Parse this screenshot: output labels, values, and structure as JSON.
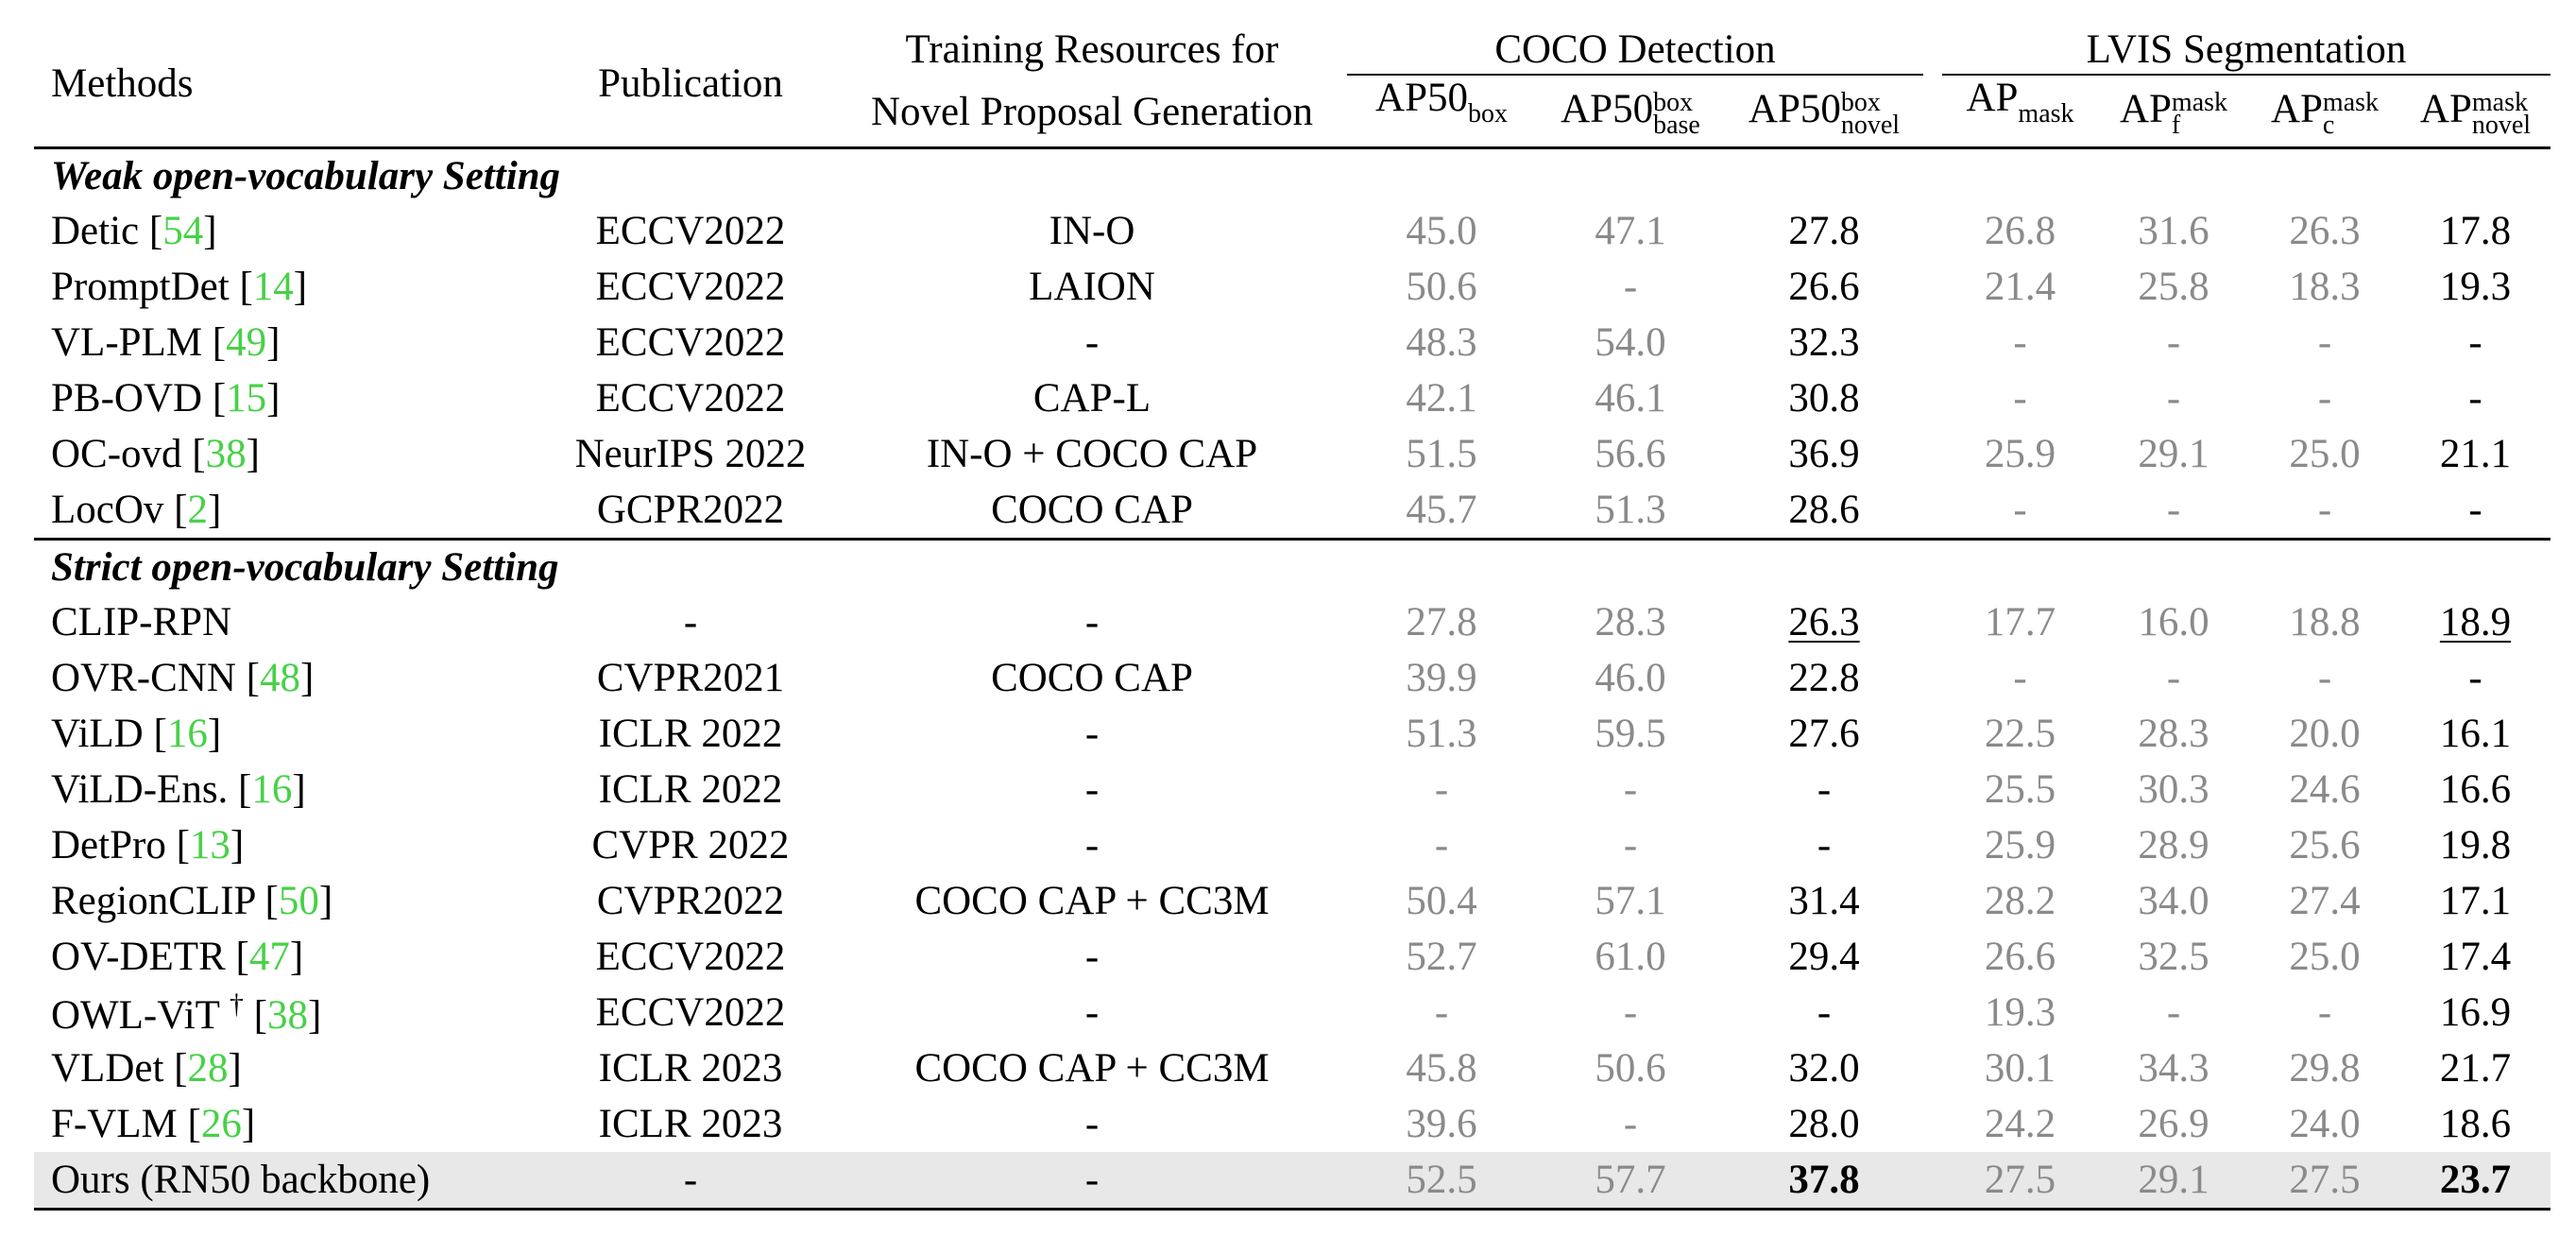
{
  "header": {
    "methods": "Methods",
    "publication": "Publication",
    "resources_line1": "Training Resources for",
    "resources_line2": "Novel Proposal Generation",
    "coco_group": "COCO Detection",
    "lvis_group": "LVIS Segmentation",
    "coco_cols": [
      {
        "base": "AP50",
        "sup": "box",
        "sub": ""
      },
      {
        "base": "AP50",
        "sup": "box",
        "sub": "base"
      },
      {
        "base": "AP50",
        "sup": "box",
        "sub": "novel"
      }
    ],
    "lvis_cols": [
      {
        "base": "AP",
        "sup": "mask",
        "sub": ""
      },
      {
        "base": "AP",
        "sup": "mask",
        "sub": "f"
      },
      {
        "base": "AP",
        "sup": "mask",
        "sub": "c"
      },
      {
        "base": "AP",
        "sup": "mask",
        "sub": "novel"
      }
    ]
  },
  "sections": [
    {
      "title": "Weak open-vocabulary Setting",
      "rows": [
        {
          "method": "Detic [",
          "cite": "54",
          "tail": "]",
          "publication": "ECCV2022",
          "resources": "IN-O",
          "coco": [
            "45.0",
            "47.1",
            "27.8"
          ],
          "lvis": [
            "26.8",
            "31.6",
            "26.3",
            "17.8"
          ]
        },
        {
          "method": "PromptDet [",
          "cite": "14",
          "tail": "]",
          "publication": "ECCV2022",
          "resources": "LAION",
          "coco": [
            "50.6",
            "-",
            "26.6"
          ],
          "lvis": [
            "21.4",
            "25.8",
            "18.3",
            "19.3"
          ]
        },
        {
          "method": "VL-PLM [",
          "cite": "49",
          "tail": "]",
          "publication": "ECCV2022",
          "resources": "-",
          "coco": [
            "48.3",
            "54.0",
            "32.3"
          ],
          "lvis": [
            "-",
            "-",
            "-",
            "-"
          ]
        },
        {
          "method": "PB-OVD [",
          "cite": "15",
          "tail": "]",
          "publication": "ECCV2022",
          "resources": "CAP-L",
          "coco": [
            "42.1",
            "46.1",
            "30.8"
          ],
          "lvis": [
            "-",
            "-",
            "-",
            "-"
          ]
        },
        {
          "method": "OC-ovd [",
          "cite": "38",
          "tail": "]",
          "publication": "NeurIPS 2022",
          "resources": "IN-O + COCO CAP",
          "coco": [
            "51.5",
            "56.6",
            "36.9"
          ],
          "lvis": [
            "25.9",
            "29.1",
            "25.0",
            "21.1"
          ]
        },
        {
          "method": "LocOv [",
          "cite": "2",
          "tail": "]",
          "publication": "GCPR2022",
          "resources": "COCO CAP",
          "coco": [
            "45.7",
            "51.3",
            "28.6"
          ],
          "lvis": [
            "-",
            "-",
            "-",
            "-"
          ]
        }
      ]
    },
    {
      "title": "Strict open-vocabulary Setting",
      "rows": [
        {
          "method": "CLIP-RPN",
          "cite": "",
          "tail": "",
          "publication": "-",
          "resources": "-",
          "coco": [
            "27.8",
            "28.3",
            "26.3"
          ],
          "lvis": [
            "17.7",
            "16.0",
            "18.8",
            "18.9"
          ],
          "underline": true
        },
        {
          "method": "OVR-CNN [",
          "cite": "48",
          "tail": "]",
          "publication": "CVPR2021",
          "resources": "COCO CAP",
          "coco": [
            "39.9",
            "46.0",
            "22.8"
          ],
          "lvis": [
            "-",
            "-",
            "-",
            "-"
          ]
        },
        {
          "method": "ViLD [",
          "cite": "16",
          "tail": "]",
          "publication": "ICLR 2022",
          "resources": "-",
          "coco": [
            "51.3",
            "59.5",
            "27.6"
          ],
          "lvis": [
            "22.5",
            "28.3",
            "20.0",
            "16.1"
          ]
        },
        {
          "method": "ViLD-Ens. [",
          "cite": "16",
          "tail": "]",
          "publication": "ICLR 2022",
          "resources": "-",
          "coco": [
            "-",
            "-",
            "-"
          ],
          "lvis": [
            "25.5",
            "30.3",
            "24.6",
            "16.6"
          ]
        },
        {
          "method": "DetPro [",
          "cite": "13",
          "tail": "]",
          "publication": "CVPR 2022",
          "resources": "-",
          "coco": [
            "-",
            "-",
            "-"
          ],
          "lvis": [
            "25.9",
            "28.9",
            "25.6",
            "19.8"
          ]
        },
        {
          "method": "RegionCLIP [",
          "cite": "50",
          "tail": "]",
          "publication": "CVPR2022",
          "resources": "COCO CAP + CC3M",
          "coco": [
            "50.4",
            "57.1",
            "31.4"
          ],
          "lvis": [
            "28.2",
            "34.0",
            "27.4",
            "17.1"
          ]
        },
        {
          "method": "OV-DETR [",
          "cite": "47",
          "tail": "]",
          "publication": "ECCV2022",
          "resources": "-",
          "coco": [
            "52.7",
            "61.0",
            "29.4"
          ],
          "lvis": [
            "26.6",
            "32.5",
            "25.0",
            "17.4"
          ]
        },
        {
          "method": "OWL-ViT ",
          "dagger": "†",
          "cite": "38",
          "tail": "]",
          "publication": "ECCV2022",
          "resources": "-",
          "coco": [
            "-",
            "-",
            "-"
          ],
          "lvis": [
            "19.3",
            "-",
            "-",
            "16.9"
          ]
        },
        {
          "method": "VLDet [",
          "cite": "28",
          "tail": "]",
          "publication": "ICLR 2023",
          "resources": "COCO CAP + CC3M",
          "coco": [
            "45.8",
            "50.6",
            "32.0"
          ],
          "lvis": [
            "30.1",
            "34.3",
            "29.8",
            "21.7"
          ]
        },
        {
          "method": "F-VLM [",
          "cite": "26",
          "tail": "]",
          "publication": "ICLR 2023",
          "resources": "-",
          "coco": [
            "39.6",
            "-",
            "28.0"
          ],
          "lvis": [
            "24.2",
            "26.9",
            "24.0",
            "18.6"
          ]
        },
        {
          "method": "Ours (RN50 backbone)",
          "cite": "",
          "tail": "",
          "publication": "-",
          "resources": "-",
          "coco": [
            "52.5",
            "57.7",
            "37.8"
          ],
          "lvis": [
            "27.5",
            "29.1",
            "27.5",
            "23.7"
          ],
          "highlight": true
        }
      ]
    }
  ]
}
